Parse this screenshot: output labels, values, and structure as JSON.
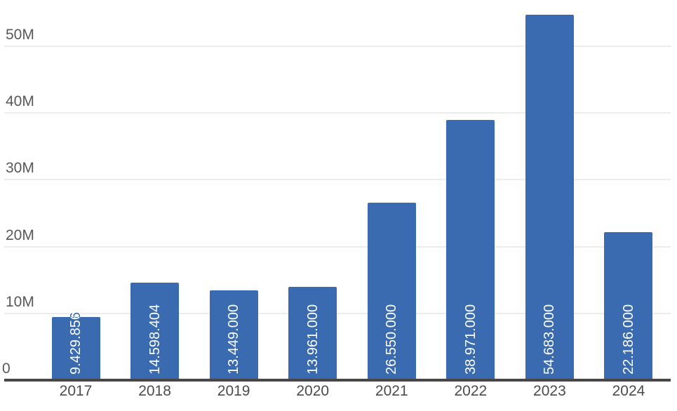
{
  "chart_data": {
    "type": "bar",
    "categories": [
      "2017",
      "2018",
      "2019",
      "2020",
      "2021",
      "2022",
      "2023",
      "2024"
    ],
    "values": [
      9429856,
      14598404,
      13449000,
      13961000,
      26550000,
      38971000,
      54683000,
      22186000
    ],
    "bar_labels": [
      "9.429.856",
      "14.598.404",
      "13.449.000",
      "13.961.000",
      "26.550.000",
      "38.971.000",
      "54.683.000",
      "22.186.000"
    ],
    "y_ticks": [
      {
        "label": "0",
        "value": 0
      },
      {
        "label": "10M",
        "value": 10000000
      },
      {
        "label": "20M",
        "value": 20000000
      },
      {
        "label": "30M",
        "value": 30000000
      },
      {
        "label": "40M",
        "value": 40000000
      },
      {
        "label": "50M",
        "value": 50000000
      }
    ],
    "ylim": [
      0,
      57000000
    ],
    "grid": true,
    "legend": "none",
    "colors": {
      "bar": "#3a6ab0",
      "bar_label": "#ffffff",
      "gridline": "#ececec",
      "axis_line": "#47474a",
      "y_tick_text": "#58585b",
      "x_tick_text": "#4b4b4d"
    }
  }
}
